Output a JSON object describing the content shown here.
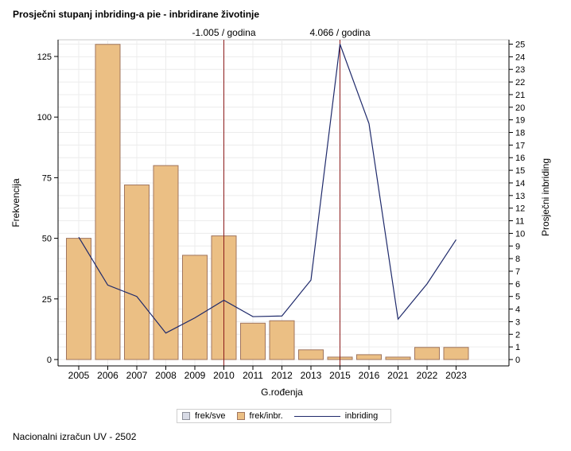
{
  "title": "Prosječni stupanj inbriding-a pie - inbridirane životinje",
  "footer": "Nacionalni izračun UV - 2502",
  "chart_data": {
    "type": "bar",
    "xlabel": "G.rođenja",
    "ylabel": "Frekvencija",
    "y2label": "Prosječni inbriding",
    "categories": [
      "2005",
      "2006",
      "2007",
      "2008",
      "2009",
      "2010",
      "2011",
      "2012",
      "2013",
      "2015",
      "2016",
      "2021",
      "2022",
      "2023"
    ],
    "series": [
      {
        "name": "frek/inbr.",
        "kind": "bar",
        "axis": "left",
        "values": [
          50,
          130,
          72,
          80,
          43,
          51,
          15,
          16,
          4,
          1,
          2,
          1,
          5,
          5
        ]
      },
      {
        "name": "inbriding",
        "kind": "line",
        "axis": "right",
        "values": [
          9.7,
          5.9,
          5.0,
          2.1,
          3.3,
          4.7,
          3.4,
          3.45,
          6.3,
          25.0,
          18.7,
          3.2,
          6.0,
          9.5
        ]
      }
    ],
    "legend_entries": [
      "frek/sve",
      "frek/inbr.",
      "inbriding"
    ],
    "legend_position": "bottom-center",
    "y_ticks": [
      0,
      25,
      50,
      75,
      100,
      125
    ],
    "ylim": [
      0,
      130
    ],
    "y2_ticks": [
      0,
      1,
      2,
      3,
      4,
      5,
      6,
      7,
      8,
      9,
      10,
      11,
      12,
      13,
      14,
      15,
      16,
      17,
      18,
      19,
      20,
      21,
      22,
      23,
      24,
      25
    ],
    "y2lim": [
      0,
      25
    ],
    "reference_lines": [
      {
        "category": "2010",
        "label": "-1.005 / godina"
      },
      {
        "category": "2015",
        "label": "4.066 / godina"
      }
    ],
    "grid": true,
    "colors": {
      "bar_fill": "#ebbf84",
      "bar_stroke": "#a0755e",
      "line": "#1f2a6b",
      "reference": "#8b1a1a",
      "frek_sve": "#d8dbe6"
    }
  }
}
